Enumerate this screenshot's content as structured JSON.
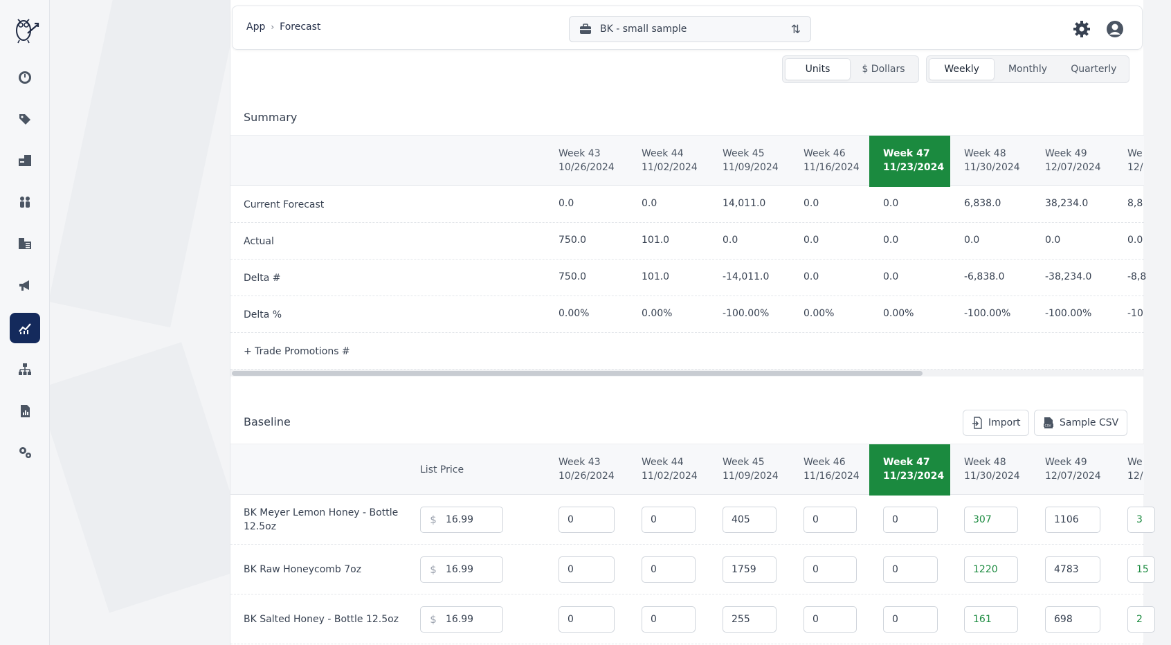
{
  "breadcrumb": {
    "root": "App",
    "current": "Forecast"
  },
  "project": {
    "name": "BK - small sample"
  },
  "units_toggle": {
    "units": "Units",
    "dollars": "$ Dollars",
    "selected": "Units"
  },
  "period_toggle": {
    "weekly": "Weekly",
    "monthly": "Monthly",
    "quarterly": "Quarterly",
    "selected": "Weekly"
  },
  "weeks": [
    {
      "label": "Week 43",
      "date": "10/26/2024"
    },
    {
      "label": "Week 44",
      "date": "11/02/2024"
    },
    {
      "label": "Week 45",
      "date": "11/09/2024"
    },
    {
      "label": "Week 46",
      "date": "11/16/2024"
    },
    {
      "label": "Week 47",
      "date": "11/23/2024"
    },
    {
      "label": "Week 48",
      "date": "11/30/2024"
    },
    {
      "label": "Week 49",
      "date": "12/07/2024"
    },
    {
      "label": "We",
      "date": "12/"
    }
  ],
  "current_week_index": 4,
  "summary": {
    "title": "Summary",
    "rows": [
      {
        "label": "Current Forecast",
        "values": [
          "0.0",
          "0.0",
          "14,011.0",
          "0.0",
          "0.0",
          "6,838.0",
          "38,234.0",
          "8,8"
        ]
      },
      {
        "label": "Actual",
        "values": [
          "750.0",
          "101.0",
          "0.0",
          "0.0",
          "0.0",
          "0.0",
          "0.0",
          "0.0"
        ]
      },
      {
        "label": "Delta #",
        "values": [
          "750.0",
          "101.0",
          "-14,011.0",
          "0.0",
          "0.0",
          "-6,838.0",
          "-38,234.0",
          "-8,8"
        ]
      },
      {
        "label": "Delta %",
        "values": [
          "0.00%",
          "0.00%",
          "-100.00%",
          "0.00%",
          "0.00%",
          "-100.00%",
          "-100.00%",
          "-10"
        ]
      }
    ],
    "trade_promotions": "+ Trade Promotions #"
  },
  "baseline": {
    "title": "Baseline",
    "import_label": "Import",
    "sample_csv_label": "Sample CSV",
    "list_price_header": "List Price",
    "currency_symbol": "$",
    "rows": [
      {
        "label": "BK Meyer Lemon Honey - Bottle 12.5oz",
        "price": "16.99",
        "values": [
          "0",
          "0",
          "405",
          "0",
          "0",
          "307",
          "1106",
          "3"
        ]
      },
      {
        "label": "BK Raw Honeycomb 7oz",
        "price": "16.99",
        "values": [
          "0",
          "0",
          "1759",
          "0",
          "0",
          "1220",
          "4783",
          "15"
        ]
      },
      {
        "label": "BK Salted Honey - Bottle 12.5oz",
        "price": "16.99",
        "values": [
          "0",
          "0",
          "255",
          "0",
          "0",
          "161",
          "698",
          "2"
        ]
      }
    ]
  },
  "colors": {
    "current_week": "#1b8a3f",
    "sidebar_active": "#142a5c",
    "forecast_green": "#1b8a3f"
  }
}
